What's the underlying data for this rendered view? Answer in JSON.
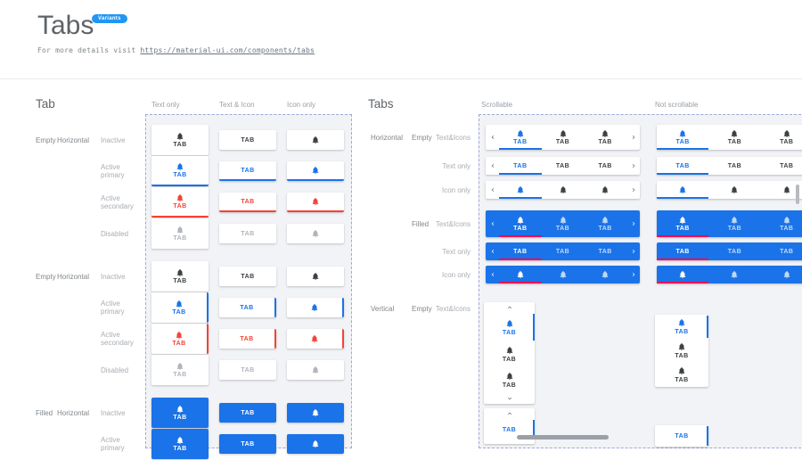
{
  "header": {
    "title": "Tabs",
    "badge": "Variants",
    "subtitle_prefix": "For more details visit",
    "subtitle_link": "https://material-ui.com/components/tabs"
  },
  "colors": {
    "primary": "#1a73e8",
    "secondary": "#f44336",
    "filled_active_underline": "#f50057",
    "badge_bg": "#2196f3"
  },
  "tab_label": "TAB",
  "left_section": {
    "heading": "Tab",
    "columns": [
      "Text only",
      "Text & Icon",
      "Icon only"
    ],
    "rows": [
      {
        "group": "Empty",
        "orientation": "Horizontal",
        "state": "Inactive",
        "variant": "plain",
        "color": "inactive"
      },
      {
        "state": "Active primary",
        "variant": "underline",
        "color": "primary"
      },
      {
        "state": "Active secondary",
        "variant": "underline",
        "color": "secondary"
      },
      {
        "state": "Disabled",
        "variant": "plain",
        "color": "disabled"
      },
      {
        "group": "Empty",
        "orientation": "Horizontal",
        "state": "Inactive",
        "variant": "plain",
        "color": "inactive",
        "gap_before": true
      },
      {
        "state": "Active primary",
        "variant": "sidebar",
        "color": "primary"
      },
      {
        "state": "Active secondary",
        "variant": "sidebar",
        "color": "secondary"
      },
      {
        "state": "Disabled",
        "variant": "plain",
        "color": "disabled"
      },
      {
        "group": "Filled",
        "orientation": "Horizontal",
        "state": "Inactive",
        "variant": "filled",
        "color": "inactive",
        "gap_before": true
      },
      {
        "state": "Active primary",
        "variant": "filled",
        "color": "primary"
      }
    ]
  },
  "right_section": {
    "heading": "Tabs",
    "columns": [
      "Scrollable",
      "Not scrollable"
    ],
    "horizontal_rows": [
      {
        "group": "Horizontal",
        "subgroup": "Empty",
        "state": "Text&Icons",
        "kind": "empty",
        "content": "both"
      },
      {
        "state": "Text only",
        "kind": "empty",
        "content": "text"
      },
      {
        "state": "Icon only",
        "kind": "empty",
        "content": "icon"
      },
      {
        "subgroup": "Filled",
        "state": "Text&Icons",
        "kind": "filled",
        "content": "both"
      },
      {
        "state": "Text only",
        "kind": "filled",
        "content": "text"
      },
      {
        "state": "Icon only",
        "kind": "filled",
        "content": "icon"
      }
    ],
    "vertical_rows": [
      {
        "group": "Vertical",
        "subgroup": "Empty",
        "state": "Text&Icons",
        "content": "both"
      },
      {
        "content": "text",
        "cut": true
      }
    ]
  }
}
